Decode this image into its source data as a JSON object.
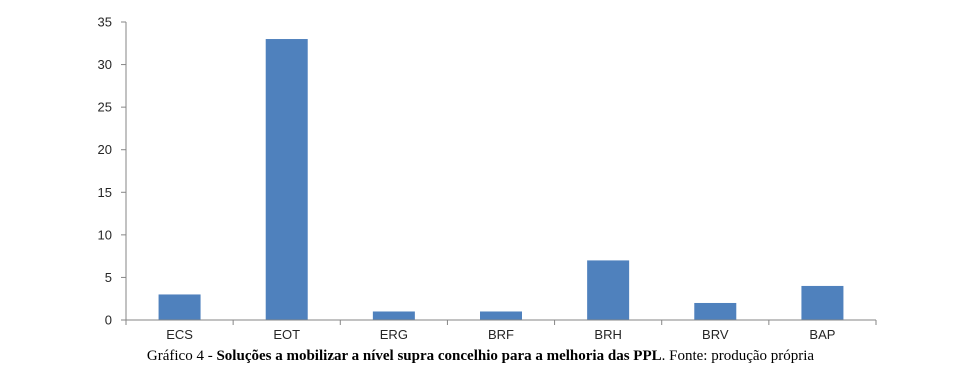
{
  "chart_data": {
    "type": "bar",
    "categories": [
      "ECS",
      "EOT",
      "ERG",
      "BRF",
      "BRH",
      "BRV",
      "BAP"
    ],
    "values": [
      3,
      33,
      1,
      1,
      7,
      2,
      4
    ],
    "ylim": [
      0,
      35
    ],
    "yticks": [
      0,
      5,
      10,
      15,
      20,
      25,
      30,
      35
    ],
    "grid": false,
    "bar_color": "#4F81BD",
    "xlabel": "",
    "ylabel": ""
  },
  "caption": {
    "prefix": "Gráfico 4 - ",
    "bold": "Soluções a mobilizar a nível supra concelhio para a melhoria das PPL",
    "suffix": ". Fonte: produção própria"
  }
}
